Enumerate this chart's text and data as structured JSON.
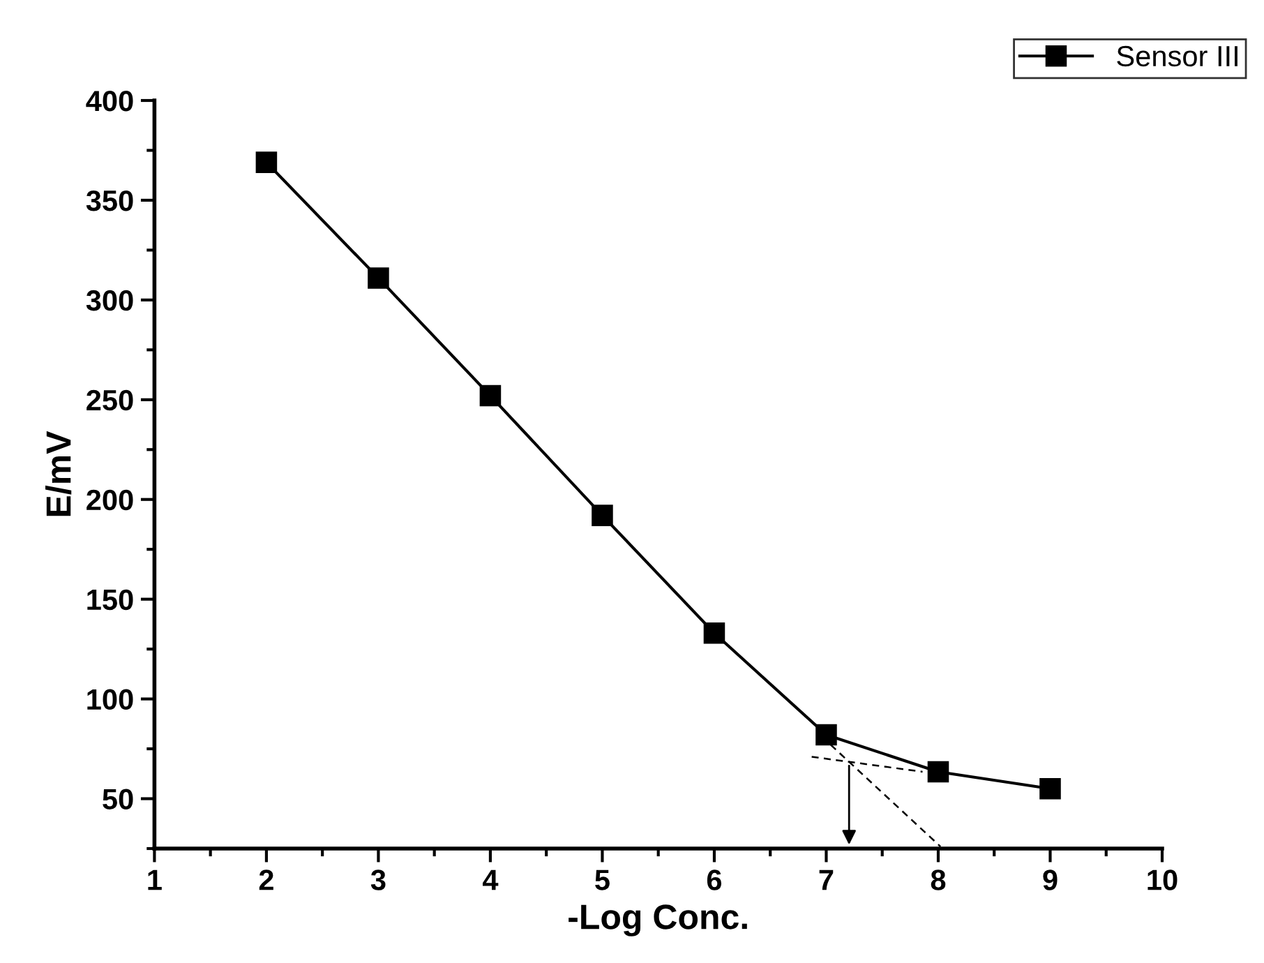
{
  "chart_data": {
    "type": "line",
    "xlabel": "-Log Conc.",
    "ylabel": "E/mV",
    "xlim": [
      1,
      10
    ],
    "xticks": [
      1,
      2,
      3,
      4,
      5,
      6,
      7,
      8,
      9,
      10
    ],
    "ylim": [
      25,
      400
    ],
    "yticks": [
      50,
      100,
      150,
      200,
      250,
      300,
      350,
      400
    ],
    "grid": false,
    "legend": "top right",
    "marker": "square",
    "line_style": "solid",
    "series": [
      {
        "name": "Sensor III",
        "color": "#000000",
        "x": [
          2,
          3,
          4,
          5,
          6,
          7,
          8,
          9
        ],
        "values": [
          369,
          311,
          252,
          192,
          133,
          82,
          63.5,
          55
        ]
      },
      {
        "type": "line",
        "color": "#000000",
        "line_style": "dashed",
        "marker": "none",
        "x": [
          7.04,
          8.02
        ],
        "values": [
          77,
          26
        ]
      },
      {
        "type": "line",
        "color": "#000000",
        "line_style": "dashed",
        "marker": "none",
        "x": [
          6.87,
          7.86
        ],
        "values": [
          71,
          63.5
        ]
      }
    ]
  }
}
